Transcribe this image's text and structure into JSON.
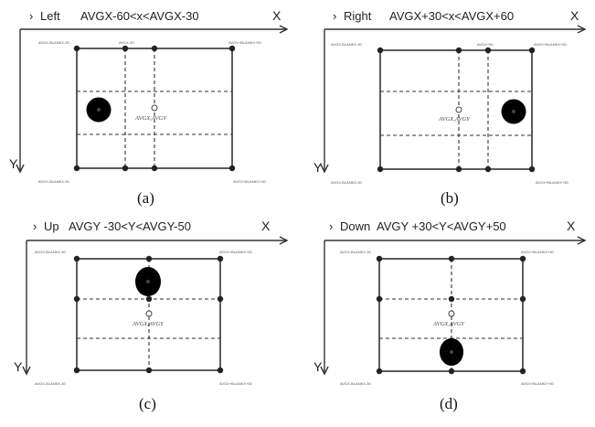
{
  "panels": [
    {
      "id": "a",
      "direction": "Left",
      "condition": "AVGX-60<x<AVGX-30",
      "caption": "(a)",
      "x_axis_label": "X",
      "y_axis_label": "Y",
      "center_label": "AVGX,AVGY",
      "gaze_position": "left",
      "corner_labels": {
        "top_left": "AVGX-BLANKX-30",
        "top_right": "AVGX+BLANKX+30",
        "bottom_left": "AVGX-BLANKX-30",
        "bottom_right": "AVGX+BLANKX+30"
      },
      "tick_label": "AVGX-30"
    },
    {
      "id": "b",
      "direction": "Right",
      "condition": "AVGX+30<x<AVGX+60",
      "caption": "(b)",
      "x_axis_label": "X",
      "y_axis_label": "Y",
      "center_label": "AVGX,AVGY",
      "gaze_position": "right",
      "corner_labels": {
        "top_left": "AVGX-BLANKX-30",
        "top_right": "AVGX+BLANKX+30",
        "bottom_left": "AVGX-BLANKX-30",
        "bottom_right": "AVGX+BLANKX+30"
      },
      "tick_label": "AVGX+30"
    },
    {
      "id": "c",
      "direction": "Up",
      "condition": "AVGY -30<Y<AVGY-50",
      "caption": "(c)",
      "x_axis_label": "X",
      "y_axis_label": "Y",
      "center_label": "AVGX,AVGY",
      "gaze_position": "up",
      "corner_labels": {
        "top_left": "AVGX-BLANKX-30",
        "top_right": "AVGX+BLANKX+30",
        "bottom_left": "AVGX-BLANKX-30",
        "bottom_right": "AVGX+BLANKX+30"
      },
      "tick_label": ""
    },
    {
      "id": "d",
      "direction": "Down",
      "condition": "AVGY +30<Y<AVGY+50",
      "caption": "(d)",
      "x_axis_label": "X",
      "y_axis_label": "Y",
      "center_label": "AVGX,AVGY",
      "gaze_position": "down",
      "corner_labels": {
        "top_left": "AVGX-BLANKX-30",
        "top_right": "AVGX+BLANKX+30",
        "bottom_left": "AVGX-BLANKX-30",
        "bottom_right": "AVGX+BLANKX+30"
      },
      "tick_label": ""
    }
  ],
  "colors": {
    "ink": "#222222",
    "gaze_fill": "#000000",
    "gaze_inner": "#444444"
  }
}
